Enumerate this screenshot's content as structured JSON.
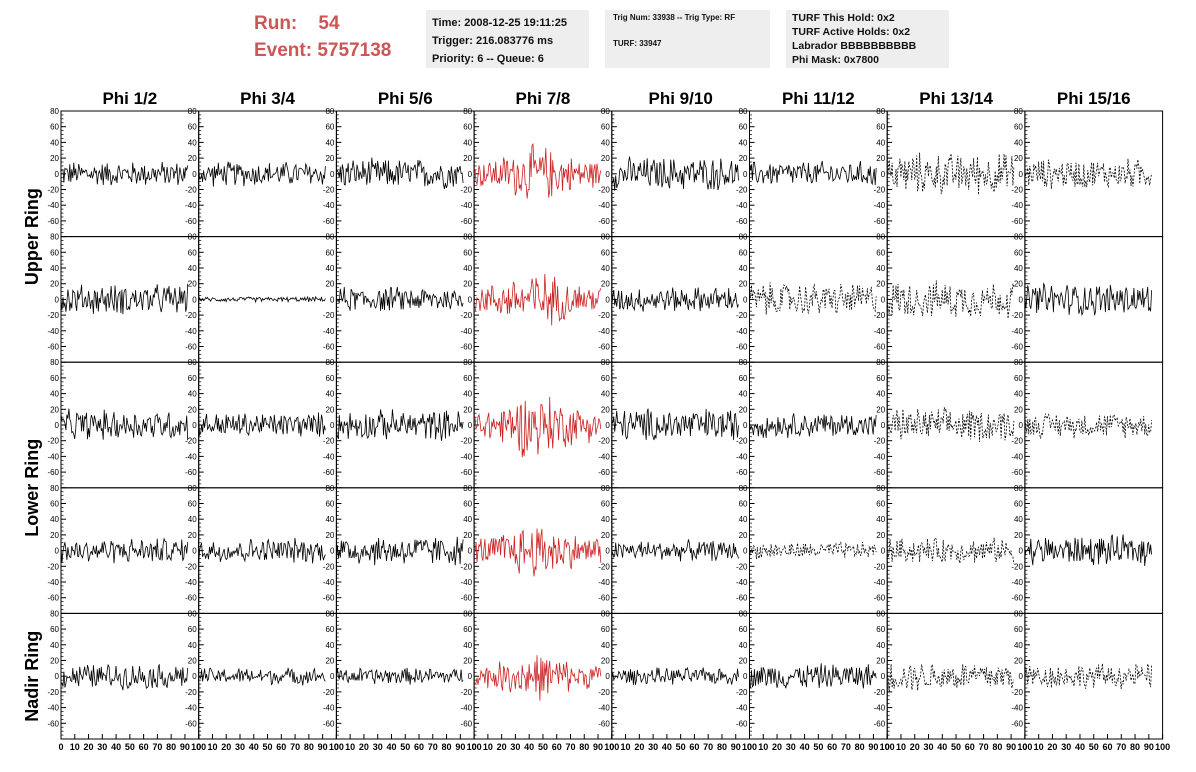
{
  "header": {
    "run_label": "Run:",
    "run_value": "54",
    "event_label": "Event:",
    "event_value": "5757138",
    "time": "Time: 2008-12-25 19:11:25",
    "trigger": "Trigger: 216.083776 ms",
    "priority": "Priority: 6 -- Queue: 6",
    "trig_num": "Trig Num: 33938 -- Trig Type: RF",
    "turf": "TURF: 33947",
    "turf_this_hold": "TURF This Hold: 0x2",
    "turf_active_holds": "TURF Active Holds: 0x2",
    "labrador": "Labrador BBBBBBBBBB",
    "phi_mask": "Phi Mask: 0x7800"
  },
  "colors": {
    "run_text": "#cc5555",
    "trace_normal": "#000000",
    "trace_highlight": "#cc2222",
    "info_box_bg": "#eeeeee"
  },
  "chart_data": {
    "type": "line",
    "columns": [
      "Phi 1/2",
      "Phi 3/4",
      "Phi 5/6",
      "Phi 7/8",
      "Phi 9/10",
      "Phi 11/12",
      "Phi 13/14",
      "Phi 15/16"
    ],
    "ring_labels": [
      "Upper Ring",
      "Lower Ring",
      "Nadir Ring"
    ],
    "rows": 5,
    "ylim": [
      -80,
      80
    ],
    "yticks": [
      -60,
      -40,
      -20,
      0,
      20,
      40,
      60,
      80
    ],
    "ytick_labels": [
      "-60",
      "-40",
      "-20",
      "0",
      "20",
      "40",
      "60",
      "80"
    ],
    "xlim": [
      0,
      100
    ],
    "xticks": [
      0,
      10,
      20,
      30,
      40,
      50,
      60,
      70,
      80,
      90,
      100
    ],
    "xtick_labels": [
      "0",
      "10",
      "20",
      "30",
      "40",
      "50",
      "60",
      "70",
      "80",
      "90",
      "100"
    ],
    "highlighted_column": "Phi 7/8",
    "dashed_panels": [
      [
        0,
        6
      ],
      [
        0,
        7
      ],
      [
        1,
        5
      ],
      [
        1,
        6
      ],
      [
        2,
        6
      ],
      [
        2,
        7
      ],
      [
        3,
        5
      ],
      [
        3,
        6
      ],
      [
        4,
        6
      ],
      [
        4,
        7
      ]
    ],
    "trace_amplitude_approx": [
      [
        15,
        15,
        18,
        30,
        20,
        15,
        25,
        18
      ],
      [
        18,
        3,
        15,
        30,
        15,
        20,
        22,
        20
      ],
      [
        18,
        15,
        18,
        35,
        20,
        15,
        20,
        15
      ],
      [
        15,
        15,
        18,
        30,
        12,
        10,
        15,
        18
      ],
      [
        15,
        10,
        10,
        25,
        10,
        15,
        18,
        15
      ]
    ],
    "trace_length_fraction": 0.92,
    "grid": false,
    "legend": "none"
  }
}
